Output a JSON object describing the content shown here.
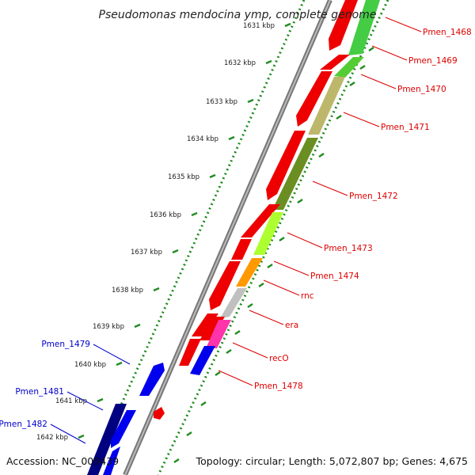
{
  "title": "Pseudomonas mendocina ymp, complete genome",
  "footer": {
    "accession": "Accession: NC_009439",
    "summary": "Topology: circular; Length: 5,072,807 bp; Genes: 4,675"
  },
  "colors": {
    "forward_label": "#dd0000",
    "reverse_label": "#0000cc",
    "backbone": "#8a8a8a",
    "ruler": "#228b22"
  },
  "ticks": [
    "1631 kbp",
    "1632 kbp",
    "1633 kbp",
    "1634 kbp",
    "1635 kbp",
    "1636 kbp",
    "1637 kbp",
    "1638 kbp",
    "1639 kbp",
    "1640 kbp",
    "1641 kbp",
    "1642 kbp"
  ],
  "forward_labels": [
    "Pmen_1468",
    "Pmen_1469",
    "Pmen_1470",
    "Pmen_1471",
    "Pmen_1472",
    "Pmen_1473",
    "Pmen_1474",
    "rnc",
    "era",
    "recO",
    "Pmen_1478"
  ],
  "reverse_labels": [
    "Pmen_1479",
    "Pmen_1481",
    "Pmen_1482"
  ]
}
